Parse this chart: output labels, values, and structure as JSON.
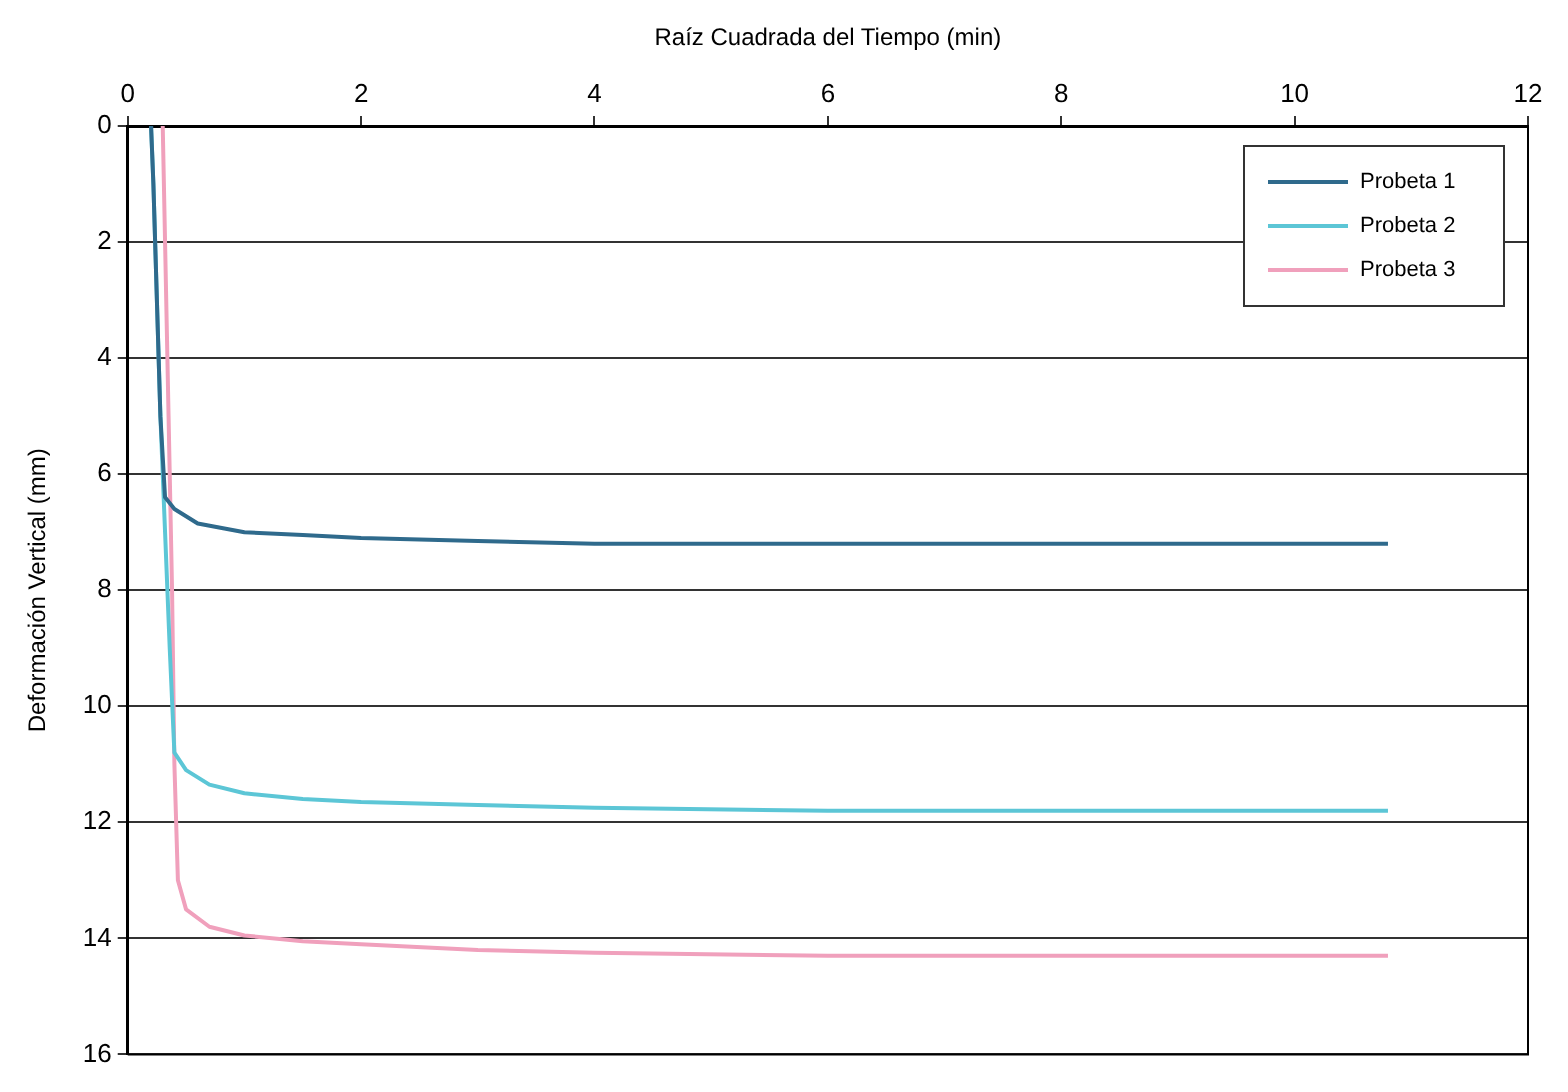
{
  "chart_data": {
    "type": "line",
    "xlabel": "Raíz Cuadrada del Tiempo (min)",
    "ylabel": "Deformación Vertical (mm)",
    "xlim": [
      0,
      12
    ],
    "xticks": [
      0,
      2,
      4,
      6,
      8,
      10,
      12
    ],
    "ylim": [
      16,
      0
    ],
    "yticks": [
      0,
      2,
      4,
      6,
      8,
      10,
      12,
      14,
      16
    ],
    "grid": "y",
    "legend": "top right",
    "marker": "none",
    "line_style": "solid",
    "series": [
      {
        "name": "Probeta 1",
        "color": "#2f6a8c",
        "x": [
          0.2,
          0.22,
          0.25,
          0.28,
          0.32,
          0.4,
          0.6,
          1,
          1.5,
          2,
          3,
          4,
          6,
          8,
          10.8
        ],
        "values": [
          0,
          1,
          3,
          5,
          6.4,
          6.6,
          6.85,
          7,
          7.05,
          7.1,
          7.15,
          7.2,
          7.2,
          7.2,
          7.2
        ]
      },
      {
        "name": "Probeta 2",
        "color": "#5cc6d6",
        "x": [
          0.2,
          0.22,
          0.25,
          0.28,
          0.32,
          0.36,
          0.4,
          0.5,
          0.7,
          1,
          1.5,
          2,
          3,
          4,
          6,
          8,
          10.8
        ],
        "values": [
          0,
          1,
          3,
          5,
          7,
          9,
          10.8,
          11.1,
          11.35,
          11.5,
          11.6,
          11.65,
          11.7,
          11.75,
          11.8,
          11.8,
          11.8
        ]
      },
      {
        "name": "Probeta 3",
        "color": "#f0a0bc",
        "x": [
          0.3,
          0.32,
          0.35,
          0.38,
          0.4,
          0.43,
          0.5,
          0.7,
          1,
          1.5,
          2,
          3,
          4,
          6,
          8,
          10.8
        ],
        "values": [
          0,
          2,
          5,
          8,
          11,
          13,
          13.5,
          13.8,
          13.95,
          14.05,
          14.1,
          14.2,
          14.25,
          14.3,
          14.3,
          14.3
        ]
      }
    ]
  }
}
